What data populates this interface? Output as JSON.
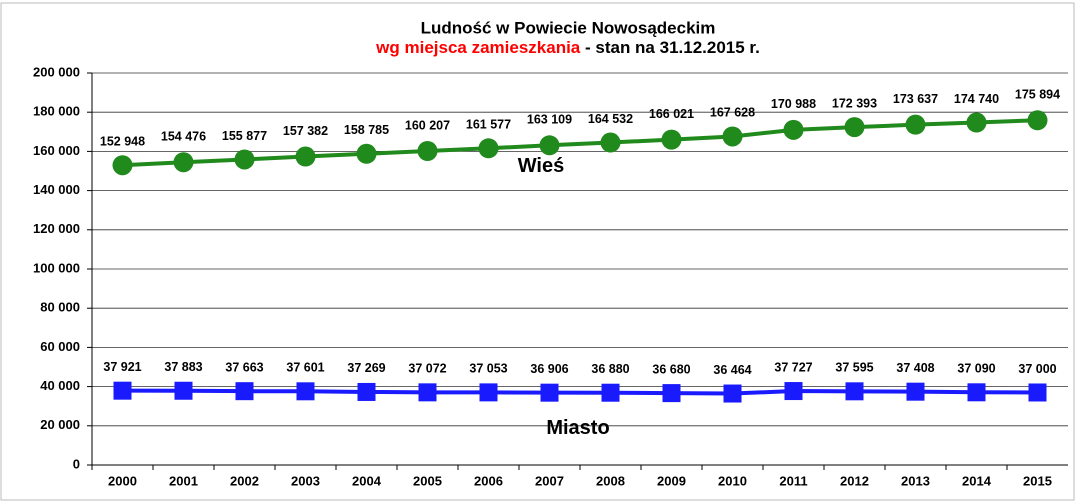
{
  "chart_data": {
    "type": "line",
    "title": "Ludność w Powiecie Nowosądeckim",
    "subtitle": {
      "highlight": "wg miejsca zamieszkania",
      "highlight_color": "#ff0000",
      "rest": " - stan na 31.12.2015 r."
    },
    "categories": [
      "2000",
      "2001",
      "2002",
      "2003",
      "2004",
      "2005",
      "2006",
      "2007",
      "2008",
      "2009",
      "2010",
      "2011",
      "2012",
      "2013",
      "2014",
      "2015"
    ],
    "series": [
      {
        "name": "Wieś",
        "color": "#218a1c",
        "marker": "circle",
        "values": [
          152948,
          154476,
          155877,
          157382,
          158785,
          160207,
          161577,
          163109,
          164532,
          166021,
          167628,
          170988,
          172393,
          173637,
          174740,
          175894
        ],
        "value_labels": [
          "152 948",
          "154 476",
          "155 877",
          "157 382",
          "158 785",
          "160 207",
          "161 577",
          "163 109",
          "164 532",
          "166 021",
          "167 628",
          "170 988",
          "172 393",
          "173 637",
          "174 740",
          "175 894"
        ]
      },
      {
        "name": "Miasto",
        "color": "#1a1aff",
        "marker": "square",
        "values": [
          37921,
          37883,
          37663,
          37601,
          37269,
          37072,
          37053,
          36906,
          36880,
          36680,
          36464,
          37727,
          37595,
          37408,
          37090,
          37000
        ],
        "value_labels": [
          "37 921",
          "37 883",
          "37 663",
          "37 601",
          "37 269",
          "37 072",
          "37 053",
          "36 906",
          "36 880",
          "36 680",
          "36 464",
          "37 727",
          "37 595",
          "37 408",
          "37 090",
          "37 000"
        ]
      }
    ],
    "ylim": [
      0,
      200000
    ],
    "yticks": [
      0,
      {
        "value": 20000,
        "label": "20 000"
      },
      {
        "value": 40000,
        "label": "40 000"
      },
      {
        "value": 60000,
        "label": "60 000"
      },
      {
        "value": 80000,
        "label": "80 000"
      },
      {
        "value": 100000,
        "label": "100 000"
      },
      {
        "value": 120000,
        "label": "120 000"
      },
      {
        "value": 140000,
        "label": "140 000"
      },
      {
        "value": 160000,
        "label": "160 000"
      },
      {
        "value": 180000,
        "label": "180 000"
      },
      {
        "value": 200000,
        "label": "200 000"
      }
    ],
    "grid": true
  }
}
